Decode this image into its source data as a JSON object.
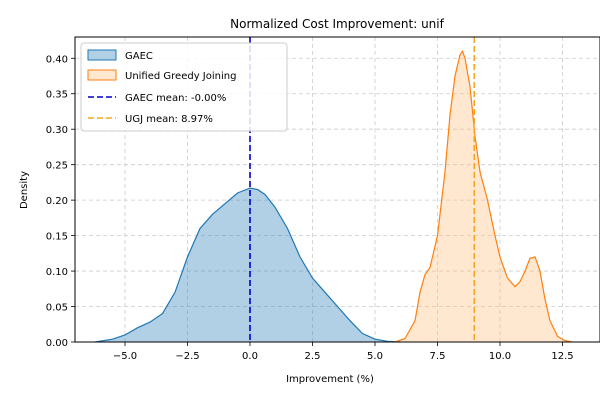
{
  "chart_data": {
    "type": "area",
    "title": "Normalized Cost Improvement: unif",
    "xlabel": "Improvement (%)",
    "ylabel": "Density",
    "xlim": [
      -7.0,
      14.0
    ],
    "ylim": [
      0,
      0.43
    ],
    "xticks": [
      -5.0,
      -2.5,
      0.0,
      2.5,
      5.0,
      7.5,
      10.0,
      12.5
    ],
    "xtick_labels": [
      "−5.0",
      "−2.5",
      "0.0",
      "2.5",
      "5.0",
      "7.5",
      "10.0",
      "12.5"
    ],
    "yticks": [
      0.0,
      0.05,
      0.1,
      0.15,
      0.2,
      0.25,
      0.3,
      0.35,
      0.4
    ],
    "ytick_labels": [
      "0.00",
      "0.05",
      "0.10",
      "0.15",
      "0.20",
      "0.25",
      "0.30",
      "0.35",
      "0.40"
    ],
    "grid": true,
    "legend_position": "top-left",
    "series": [
      {
        "name": "GAEC",
        "kind": "density",
        "color": "#1f77b4",
        "fill": "#1f77b4",
        "x": [
          -6.2,
          -5.5,
          -5.0,
          -4.5,
          -4.0,
          -3.5,
          -3.0,
          -2.5,
          -2.0,
          -1.5,
          -1.0,
          -0.5,
          0.0,
          0.3,
          0.6,
          1.0,
          1.5,
          2.0,
          2.5,
          3.0,
          3.5,
          4.0,
          4.5,
          5.0,
          5.5,
          6.0
        ],
        "y": [
          0.0,
          0.004,
          0.01,
          0.02,
          0.028,
          0.04,
          0.07,
          0.12,
          0.16,
          0.18,
          0.195,
          0.21,
          0.217,
          0.215,
          0.208,
          0.19,
          0.16,
          0.12,
          0.09,
          0.07,
          0.05,
          0.03,
          0.012,
          0.004,
          0.001,
          0.0
        ]
      },
      {
        "name": "Unified Greedy Joining",
        "kind": "density",
        "color": "#ff7f0e",
        "fill": "#ffbb78",
        "x": [
          5.8,
          6.2,
          6.6,
          6.8,
          7.0,
          7.2,
          7.5,
          7.8,
          8.0,
          8.2,
          8.4,
          8.5,
          8.6,
          8.8,
          9.0,
          9.2,
          9.5,
          9.8,
          10.0,
          10.3,
          10.6,
          10.8,
          11.0,
          11.2,
          11.4,
          11.6,
          11.8,
          12.0,
          12.3,
          12.6,
          12.9
        ],
        "y": [
          0.0,
          0.005,
          0.03,
          0.07,
          0.095,
          0.105,
          0.15,
          0.24,
          0.32,
          0.375,
          0.405,
          0.41,
          0.4,
          0.36,
          0.29,
          0.24,
          0.2,
          0.15,
          0.12,
          0.09,
          0.078,
          0.085,
          0.1,
          0.118,
          0.12,
          0.1,
          0.06,
          0.03,
          0.008,
          0.002,
          0.0
        ]
      }
    ],
    "reference_lines": [
      {
        "name": "GAEC mean: -0.00%",
        "x": -0.0,
        "color": "#0000cc",
        "style": "dashed"
      },
      {
        "name": "UGJ mean: 8.97%",
        "x": 8.97,
        "color": "#f5a623",
        "style": "dashed"
      }
    ]
  }
}
